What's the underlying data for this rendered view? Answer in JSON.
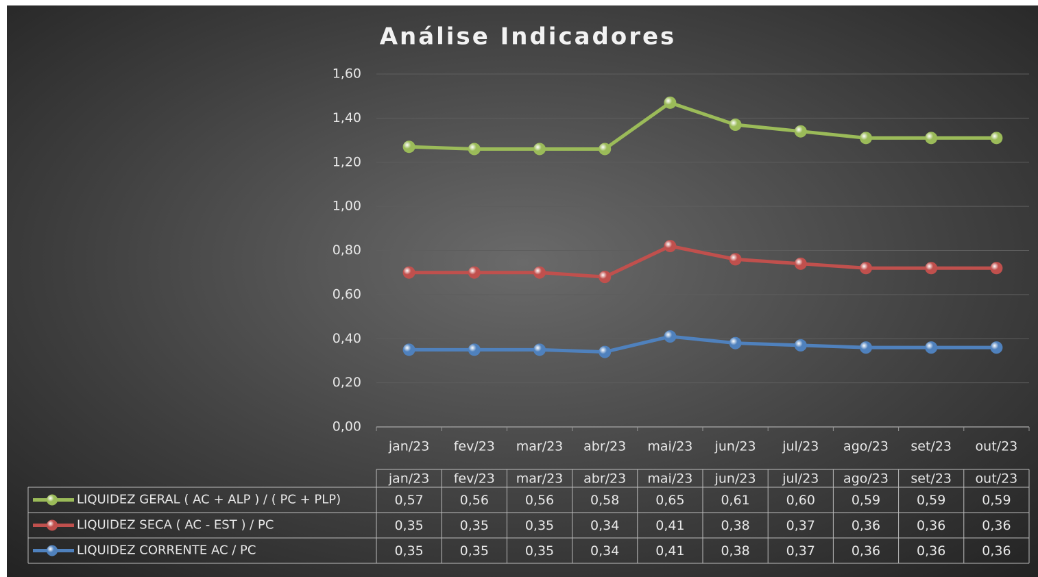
{
  "chart_data": {
    "type": "line",
    "stacked": true,
    "title": "Análise Indicadores",
    "categories": [
      "jan/23",
      "fev/23",
      "mar/23",
      "abr/23",
      "mai/23",
      "jun/23",
      "jul/23",
      "ago/23",
      "set/23",
      "out/23"
    ],
    "series": [
      {
        "name": "LIQUIDEZ GERAL ( AC + ALP ) / ( PC + PLP)",
        "color": "#9bbb59",
        "values": [
          0.57,
          0.56,
          0.56,
          0.58,
          0.65,
          0.61,
          0.6,
          0.59,
          0.59,
          0.59
        ],
        "value_labels": [
          "0,57",
          "0,56",
          "0,56",
          "0,58",
          "0,65",
          "0,61",
          "0,60",
          "0,59",
          "0,59",
          "0,59"
        ]
      },
      {
        "name": "LIQUIDEZ SECA  ( AC - EST )  / PC",
        "color": "#c0504d",
        "values": [
          0.35,
          0.35,
          0.35,
          0.34,
          0.41,
          0.38,
          0.37,
          0.36,
          0.36,
          0.36
        ],
        "value_labels": [
          "0,35",
          "0,35",
          "0,35",
          "0,34",
          "0,41",
          "0,38",
          "0,37",
          "0,36",
          "0,36",
          "0,36"
        ]
      },
      {
        "name": "LIQUIDEZ CORRENTE  AC / PC",
        "color": "#4f81bd",
        "values": [
          0.35,
          0.35,
          0.35,
          0.34,
          0.41,
          0.38,
          0.37,
          0.36,
          0.36,
          0.36
        ],
        "value_labels": [
          "0,35",
          "0,35",
          "0,35",
          "0,34",
          "0,41",
          "0,38",
          "0,37",
          "0,36",
          "0,36",
          "0,36"
        ]
      }
    ],
    "ylim": [
      0,
      1.6
    ],
    "yticks": [
      {
        "value": 0,
        "label": "0,00"
      },
      {
        "value": 0.2,
        "label": "0,20"
      },
      {
        "value": 0.4,
        "label": "0,40"
      },
      {
        "value": 0.6,
        "label": "0,60"
      },
      {
        "value": 0.8,
        "label": "0,80"
      },
      {
        "value": 1.0,
        "label": "1,00"
      },
      {
        "value": 1.2,
        "label": "1,20"
      },
      {
        "value": 1.4,
        "label": "1,40"
      },
      {
        "value": 1.6,
        "label": "1,60"
      }
    ],
    "grid": true,
    "data_table": true
  }
}
